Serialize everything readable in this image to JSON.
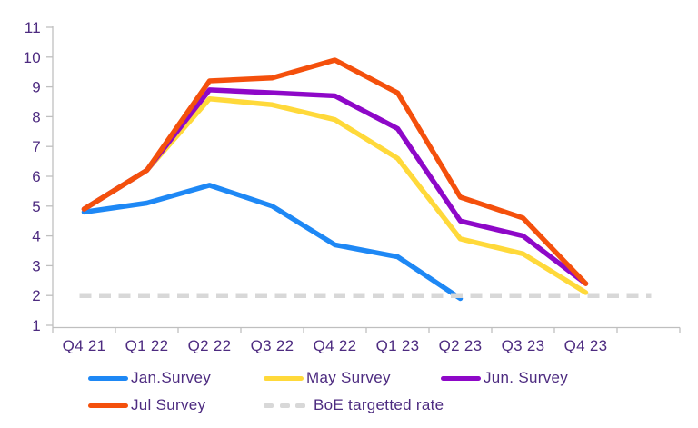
{
  "chart_data": {
    "type": "line",
    "title": "",
    "xlabel": "",
    "ylabel": "",
    "categories": [
      "Q4 21",
      "Q1 22",
      "Q2 22",
      "Q3 22",
      "Q4 22",
      "Q1 23",
      "Q2 23",
      "Q3 23",
      "Q4 23"
    ],
    "series": [
      {
        "name": "Jan.Survey",
        "color": "#1e88f5",
        "values": [
          4.8,
          5.1,
          5.7,
          5.0,
          3.7,
          3.3,
          1.9,
          null,
          null
        ]
      },
      {
        "name": "May Survey",
        "color": "#ffd93a",
        "values": [
          4.9,
          6.2,
          8.6,
          8.4,
          7.9,
          6.6,
          3.9,
          3.4,
          2.1
        ]
      },
      {
        "name": "Jun. Survey",
        "color": "#8e08c8",
        "values": [
          4.9,
          6.2,
          8.9,
          8.8,
          8.7,
          7.6,
          4.5,
          4.0,
          2.4
        ]
      },
      {
        "name": "Jul Survey",
        "color": "#f4500c",
        "values": [
          4.9,
          6.2,
          9.2,
          9.3,
          9.9,
          8.8,
          5.3,
          4.6,
          2.4
        ]
      }
    ],
    "reference_line": {
      "name": "BoE targetted rate",
      "color": "#d8d8d8",
      "value": 2.0,
      "style": "dashed",
      "extends_one_category_past_last_label": true
    },
    "y_axis": {
      "min": 1,
      "max": 11,
      "step": 1,
      "tick_labels": [
        "1",
        "2",
        "3",
        "4",
        "5",
        "6",
        "7",
        "8",
        "9",
        "10",
        "11"
      ]
    },
    "legend_position": "bottom",
    "grid": false,
    "colors": {
      "text": "#4d2b80",
      "axis_line": "#bfbfbf",
      "background": "#ffffff"
    }
  }
}
